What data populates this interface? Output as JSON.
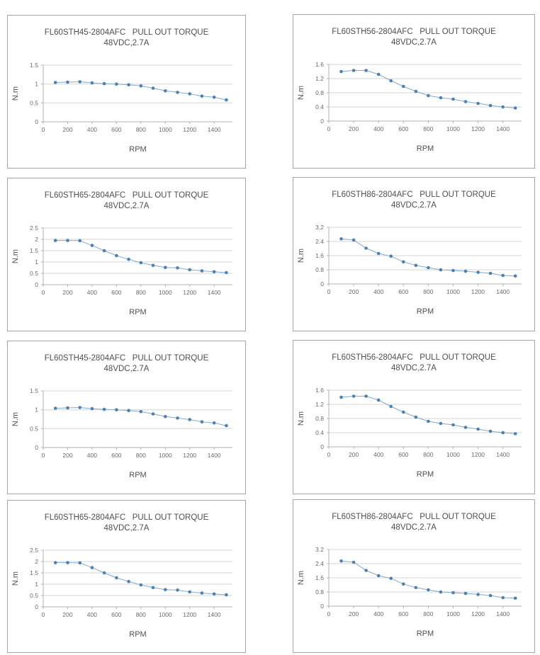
{
  "colors": {
    "line": "#7fabd1",
    "marker": "#4b80b5",
    "grid": "#d6d6d6",
    "axis": "#b3b3b3",
    "panel_border": "#a6a6a6",
    "text": "#4f4f4f"
  },
  "chart_data": [
    {
      "type": "line",
      "title": "FL60STH45-2804AFC   PULL OUT TORQUE",
      "subtitle": "48VDC,2.7A",
      "xlabel": "RPM",
      "ylabel": "N.m",
      "x": [
        100,
        200,
        300,
        400,
        500,
        600,
        700,
        800,
        900,
        1000,
        1100,
        1200,
        1300,
        1400,
        1500
      ],
      "values": [
        1.04,
        1.05,
        1.06,
        1.03,
        1.01,
        1.0,
        0.98,
        0.95,
        0.89,
        0.82,
        0.78,
        0.74,
        0.68,
        0.65,
        0.58
      ],
      "xticks": [
        0,
        200,
        400,
        600,
        800,
        1000,
        1200,
        1400
      ],
      "yticks": [
        0,
        0.5,
        1,
        1.5
      ],
      "xlim": [
        0,
        1550
      ],
      "ylim": [
        0,
        1.5
      ],
      "grid": true,
      "legend": false
    },
    {
      "type": "line",
      "title": "FL60STH56-2804AFC   PULL OUT TORQUE",
      "subtitle": "48VDC,2.7A",
      "xlabel": "RPM",
      "ylabel": "N.m",
      "x": [
        100,
        200,
        300,
        400,
        500,
        600,
        700,
        800,
        900,
        1000,
        1100,
        1200,
        1300,
        1400,
        1500
      ],
      "values": [
        1.4,
        1.43,
        1.43,
        1.32,
        1.14,
        0.98,
        0.84,
        0.72,
        0.66,
        0.62,
        0.55,
        0.5,
        0.44,
        0.4,
        0.37
      ],
      "xticks": [
        0,
        200,
        400,
        600,
        800,
        1000,
        1200,
        1400
      ],
      "yticks": [
        0,
        0.4,
        0.8,
        1.2,
        1.6
      ],
      "xlim": [
        0,
        1550
      ],
      "ylim": [
        0,
        1.6
      ],
      "grid": true,
      "legend": false
    },
    {
      "type": "line",
      "title": "FL60STH65-2804AFC   PULL OUT TORQUE",
      "subtitle": "48VDC,2.7A",
      "xlabel": "RPM",
      "ylabel": "N.m",
      "x": [
        100,
        200,
        300,
        400,
        500,
        600,
        700,
        800,
        900,
        1000,
        1100,
        1200,
        1300,
        1400,
        1500
      ],
      "values": [
        1.95,
        1.95,
        1.94,
        1.73,
        1.5,
        1.28,
        1.12,
        0.97,
        0.85,
        0.76,
        0.74,
        0.66,
        0.61,
        0.57,
        0.53
      ],
      "xticks": [
        0,
        200,
        400,
        600,
        800,
        1000,
        1200,
        1400
      ],
      "yticks": [
        0,
        0.5,
        1,
        1.5,
        2,
        2.5
      ],
      "xlim": [
        0,
        1550
      ],
      "ylim": [
        0,
        2.5
      ],
      "grid": true,
      "legend": false
    },
    {
      "type": "line",
      "title": "FL60STH86-2804AFC   PULL OUT TORQUE",
      "subtitle": "48VDC,2.7A",
      "xlabel": "RPM",
      "ylabel": "N.m",
      "x": [
        100,
        200,
        300,
        400,
        500,
        600,
        700,
        800,
        900,
        1000,
        1100,
        1200,
        1300,
        1400,
        1500
      ],
      "values": [
        2.55,
        2.48,
        2.02,
        1.72,
        1.57,
        1.25,
        1.05,
        0.92,
        0.8,
        0.76,
        0.72,
        0.66,
        0.6,
        0.48,
        0.45
      ],
      "xticks": [
        0,
        200,
        400,
        600,
        800,
        1000,
        1200,
        1400
      ],
      "yticks": [
        0,
        0.8,
        1.6,
        2.4,
        3.2
      ],
      "xlim": [
        0,
        1550
      ],
      "ylim": [
        0,
        3.2
      ],
      "grid": true,
      "legend": false
    },
    {
      "type": "line",
      "title": "FL60STH45-2804AFC   PULL OUT TORQUE",
      "subtitle": "48VDC,2.7A",
      "xlabel": "RPM",
      "ylabel": "N.m",
      "x": [
        100,
        200,
        300,
        400,
        500,
        600,
        700,
        800,
        900,
        1000,
        1100,
        1200,
        1300,
        1400,
        1500
      ],
      "values": [
        1.04,
        1.05,
        1.06,
        1.03,
        1.01,
        1.0,
        0.98,
        0.95,
        0.89,
        0.82,
        0.78,
        0.74,
        0.68,
        0.65,
        0.58
      ],
      "xticks": [
        0,
        200,
        400,
        600,
        800,
        1000,
        1200,
        1400
      ],
      "yticks": [
        0,
        0.5,
        1,
        1.5
      ],
      "xlim": [
        0,
        1550
      ],
      "ylim": [
        0,
        1.5
      ],
      "grid": true,
      "legend": false
    },
    {
      "type": "line",
      "title": "FL60STH56-2804AFC   PULL OUT TORQUE",
      "subtitle": "48VDC,2.7A",
      "xlabel": "RPM",
      "ylabel": "N.m",
      "x": [
        100,
        200,
        300,
        400,
        500,
        600,
        700,
        800,
        900,
        1000,
        1100,
        1200,
        1300,
        1400,
        1500
      ],
      "values": [
        1.4,
        1.43,
        1.43,
        1.32,
        1.14,
        0.98,
        0.84,
        0.72,
        0.66,
        0.62,
        0.55,
        0.5,
        0.44,
        0.4,
        0.37
      ],
      "xticks": [
        0,
        200,
        400,
        600,
        800,
        1000,
        1200,
        1400
      ],
      "yticks": [
        0,
        0.4,
        0.8,
        1.2,
        1.6
      ],
      "xlim": [
        0,
        1550
      ],
      "ylim": [
        0,
        1.6
      ],
      "grid": true,
      "legend": false
    },
    {
      "type": "line",
      "title": "FL60STH65-2804AFC   PULL OUT TORQUE",
      "subtitle": "48VDC,2.7A",
      "xlabel": "RPM",
      "ylabel": "N.m",
      "x": [
        100,
        200,
        300,
        400,
        500,
        600,
        700,
        800,
        900,
        1000,
        1100,
        1200,
        1300,
        1400,
        1500
      ],
      "values": [
        1.95,
        1.95,
        1.94,
        1.73,
        1.5,
        1.28,
        1.12,
        0.97,
        0.85,
        0.76,
        0.74,
        0.66,
        0.61,
        0.57,
        0.53
      ],
      "xticks": [
        0,
        200,
        400,
        600,
        800,
        1000,
        1200,
        1400
      ],
      "yticks": [
        0,
        0.5,
        1,
        1.5,
        2,
        2.5
      ],
      "xlim": [
        0,
        1550
      ],
      "ylim": [
        0,
        2.5
      ],
      "grid": true,
      "legend": false
    },
    {
      "type": "line",
      "title": "FL60STH86-2804AFC   PULL OUT TORQUE",
      "subtitle": "48VDC,2.7A",
      "xlabel": "RPM",
      "ylabel": "N.m",
      "x": [
        100,
        200,
        300,
        400,
        500,
        600,
        700,
        800,
        900,
        1000,
        1100,
        1200,
        1300,
        1400,
        1500
      ],
      "values": [
        2.55,
        2.48,
        2.02,
        1.72,
        1.57,
        1.25,
        1.05,
        0.92,
        0.8,
        0.76,
        0.72,
        0.66,
        0.6,
        0.48,
        0.45
      ],
      "xticks": [
        0,
        200,
        400,
        600,
        800,
        1000,
        1200,
        1400
      ],
      "yticks": [
        0,
        0.8,
        1.6,
        2.4,
        3.2
      ],
      "xlim": [
        0,
        1550
      ],
      "ylim": [
        0,
        3.2
      ],
      "grid": true,
      "legend": false
    }
  ]
}
